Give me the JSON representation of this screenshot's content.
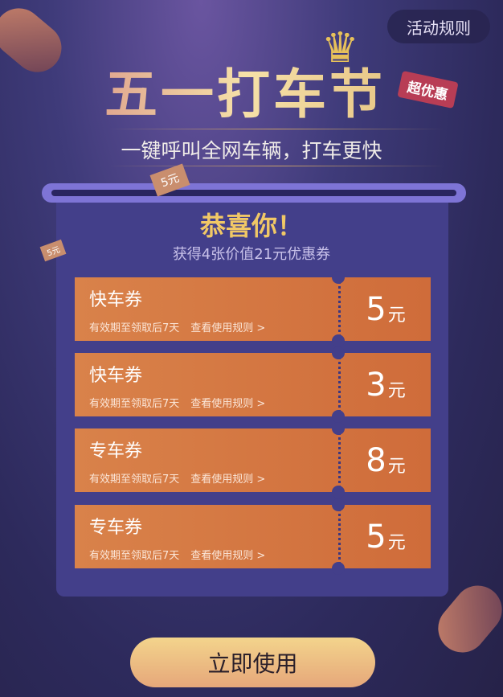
{
  "header": {
    "rules_button": "活动规则",
    "title": "五一打车节",
    "tag": "超优惠",
    "subtitle": "一键呼叫全网车辆，打车更快"
  },
  "decor": {
    "ticket_label": "5元",
    "small_ticket_label": "5元"
  },
  "panel": {
    "congrats": "恭喜你！",
    "summary": "获得4张价值21元优惠券"
  },
  "coupons": [
    {
      "name": "快车券",
      "validity": "有效期至领取后7天",
      "rules_link": "查看使用规则 >",
      "amount": "5",
      "unit": "元"
    },
    {
      "name": "快车券",
      "validity": "有效期至领取后7天",
      "rules_link": "查看使用规则 >",
      "amount": "3",
      "unit": "元"
    },
    {
      "name": "专车券",
      "validity": "有效期至领取后7天",
      "rules_link": "查看使用规则 >",
      "amount": "8",
      "unit": "元"
    },
    {
      "name": "专车券",
      "validity": "有效期至领取后7天",
      "rules_link": "查看使用规则 >",
      "amount": "5",
      "unit": "元"
    }
  ],
  "cta": {
    "label": "立即使用"
  },
  "colors": {
    "accent": "#f1c866",
    "coupon": "#d9824a",
    "panel": "#433f8a"
  }
}
